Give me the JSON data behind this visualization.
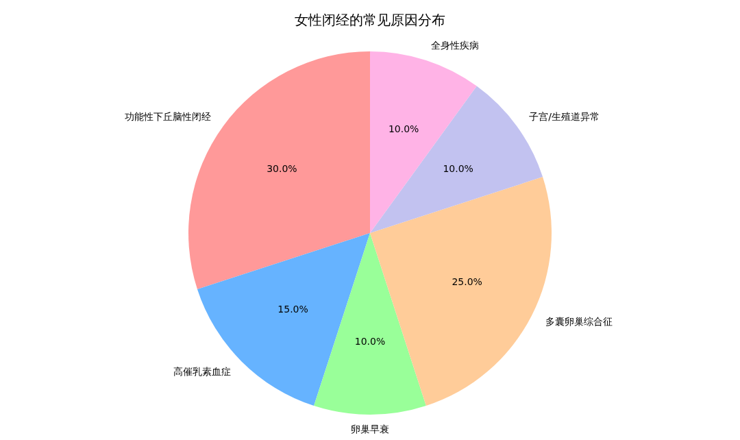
{
  "chart_data": {
    "type": "pie",
    "title": "女性闭经的常见原因分布",
    "categories": [
      "功能性下丘脑性闭经",
      "高催乳素血症",
      "卵巢早衰",
      "多囊卵巢综合征",
      "子宫/生殖道异常",
      "全身性疾病"
    ],
    "values": [
      30,
      15,
      10,
      25,
      10,
      10
    ],
    "colors": [
      "#ff9999",
      "#66b3ff",
      "#99ff99",
      "#ffcc99",
      "#c2c2f0",
      "#ffb3e6"
    ],
    "value_labels": [
      "30.0%",
      "15.0%",
      "10.0%",
      "25.0%",
      "10.0%",
      "10.0%"
    ]
  }
}
